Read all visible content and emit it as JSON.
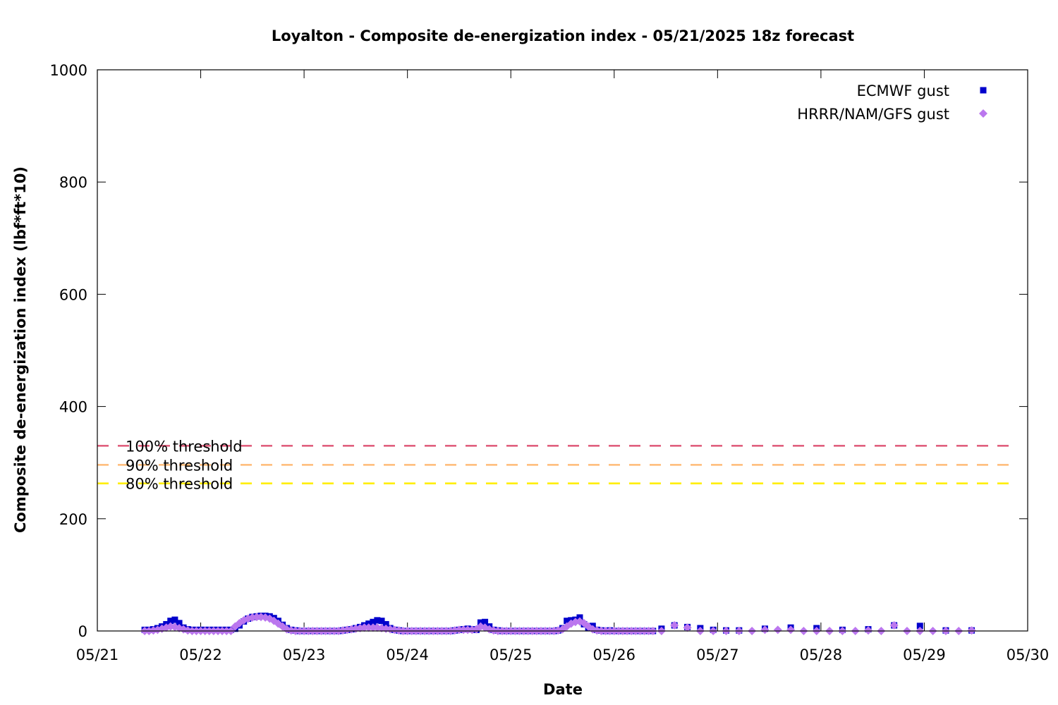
{
  "chart_data": {
    "type": "scatter",
    "title": "Loyalton - Composite de-energization index - 05/21/2025 18z forecast",
    "xlabel": "Date",
    "ylabel": "Composite de-energization index (lbf*ft*10)",
    "xlim": [
      0,
      9
    ],
    "ylim": [
      0,
      1000
    ],
    "x_unit": "days after 05/21 00z",
    "x_ticks": [
      {
        "value": 0,
        "label": "05/21"
      },
      {
        "value": 1,
        "label": "05/22"
      },
      {
        "value": 2,
        "label": "05/23"
      },
      {
        "value": 3,
        "label": "05/24"
      },
      {
        "value": 4,
        "label": "05/25"
      },
      {
        "value": 5,
        "label": "05/26"
      },
      {
        "value": 6,
        "label": "05/27"
      },
      {
        "value": 7,
        "label": "05/28"
      },
      {
        "value": 8,
        "label": "05/29"
      },
      {
        "value": 9,
        "label": "05/30"
      }
    ],
    "y_ticks": [
      0,
      200,
      400,
      600,
      800,
      1000
    ],
    "grid": false,
    "legend_position": "top-right",
    "thresholds": [
      {
        "label": "100% threshold",
        "value": 330,
        "color": "#e0607e"
      },
      {
        "label": "90% threshold",
        "value": 296,
        "color": "#ffbb77"
      },
      {
        "label": "80% threshold",
        "value": 263,
        "color": "#ffee00"
      }
    ],
    "series": [
      {
        "name": "ECMWF gust",
        "color": "#0000cc",
        "marker": "square",
        "points": [
          [
            0.458,
            2
          ],
          [
            0.5,
            2
          ],
          [
            0.542,
            3
          ],
          [
            0.583,
            5
          ],
          [
            0.625,
            8
          ],
          [
            0.667,
            12
          ],
          [
            0.708,
            18
          ],
          [
            0.75,
            20
          ],
          [
            0.792,
            14
          ],
          [
            0.833,
            6
          ],
          [
            0.875,
            3
          ],
          [
            0.917,
            2
          ],
          [
            0.958,
            2
          ],
          [
            1.0,
            2
          ],
          [
            1.042,
            2
          ],
          [
            1.083,
            2
          ],
          [
            1.125,
            2
          ],
          [
            1.167,
            2
          ],
          [
            1.208,
            2
          ],
          [
            1.25,
            2
          ],
          [
            1.292,
            2
          ],
          [
            1.333,
            4
          ],
          [
            1.375,
            10
          ],
          [
            1.417,
            17
          ],
          [
            1.458,
            22
          ],
          [
            1.5,
            25
          ],
          [
            1.542,
            26
          ],
          [
            1.583,
            27
          ],
          [
            1.625,
            27
          ],
          [
            1.667,
            26
          ],
          [
            1.708,
            23
          ],
          [
            1.75,
            18
          ],
          [
            1.792,
            11
          ],
          [
            1.833,
            5
          ],
          [
            1.875,
            2
          ],
          [
            1.917,
            1
          ],
          [
            1.958,
            0
          ],
          [
            2.0,
            0
          ],
          [
            2.042,
            0
          ],
          [
            2.083,
            0
          ],
          [
            2.125,
            0
          ],
          [
            2.167,
            0
          ],
          [
            2.208,
            0
          ],
          [
            2.25,
            0
          ],
          [
            2.292,
            0
          ],
          [
            2.333,
            0
          ],
          [
            2.375,
            1
          ],
          [
            2.417,
            2
          ],
          [
            2.458,
            3
          ],
          [
            2.5,
            5
          ],
          [
            2.542,
            7
          ],
          [
            2.583,
            10
          ],
          [
            2.625,
            13
          ],
          [
            2.667,
            16
          ],
          [
            2.708,
            19
          ],
          [
            2.75,
            18
          ],
          [
            2.792,
            12
          ],
          [
            2.833,
            5
          ],
          [
            2.875,
            2
          ],
          [
            2.917,
            1
          ],
          [
            2.958,
            0
          ],
          [
            3.0,
            0
          ],
          [
            3.042,
            0
          ],
          [
            3.083,
            0
          ],
          [
            3.125,
            0
          ],
          [
            3.167,
            0
          ],
          [
            3.208,
            0
          ],
          [
            3.25,
            0
          ],
          [
            3.292,
            0
          ],
          [
            3.333,
            0
          ],
          [
            3.375,
            0
          ],
          [
            3.417,
            0
          ],
          [
            3.458,
            1
          ],
          [
            3.5,
            2
          ],
          [
            3.542,
            3
          ],
          [
            3.583,
            4
          ],
          [
            3.625,
            3
          ],
          [
            3.667,
            2
          ],
          [
            3.708,
            15
          ],
          [
            3.75,
            16
          ],
          [
            3.792,
            8
          ],
          [
            3.833,
            2
          ],
          [
            3.875,
            1
          ],
          [
            3.917,
            0
          ],
          [
            3.958,
            0
          ],
          [
            4.0,
            0
          ],
          [
            4.042,
            0
          ],
          [
            4.083,
            0
          ],
          [
            4.125,
            0
          ],
          [
            4.167,
            0
          ],
          [
            4.208,
            0
          ],
          [
            4.25,
            0
          ],
          [
            4.292,
            0
          ],
          [
            4.333,
            0
          ],
          [
            4.375,
            0
          ],
          [
            4.417,
            0
          ],
          [
            4.458,
            1
          ],
          [
            4.5,
            5
          ],
          [
            4.542,
            18
          ],
          [
            4.583,
            19
          ],
          [
            4.625,
            20
          ],
          [
            4.667,
            24
          ],
          [
            4.708,
            12
          ],
          [
            4.75,
            5
          ],
          [
            4.792,
            9
          ],
          [
            4.833,
            2
          ],
          [
            4.875,
            1
          ],
          [
            4.917,
            0
          ],
          [
            4.958,
            1
          ],
          [
            5.0,
            0
          ],
          [
            5.042,
            0
          ],
          [
            5.083,
            0
          ],
          [
            5.125,
            0
          ],
          [
            5.167,
            0
          ],
          [
            5.208,
            0
          ],
          [
            5.25,
            0
          ],
          [
            5.292,
            0
          ],
          [
            5.333,
            0
          ],
          [
            5.375,
            0
          ],
          [
            5.458,
            4
          ],
          [
            5.583,
            10
          ],
          [
            5.708,
            7
          ],
          [
            5.833,
            5
          ],
          [
            5.958,
            2
          ],
          [
            6.083,
            1
          ],
          [
            6.208,
            1
          ],
          [
            6.458,
            4
          ],
          [
            6.708,
            6
          ],
          [
            6.958,
            5
          ],
          [
            7.208,
            2
          ],
          [
            7.458,
            3
          ],
          [
            7.708,
            10
          ],
          [
            7.958,
            9
          ],
          [
            8.208,
            1
          ],
          [
            8.458,
            1
          ]
        ]
      },
      {
        "name": "HRRR/NAM/GFS gust",
        "color": "#bb77ee",
        "marker": "diamond",
        "points": [
          [
            0.458,
            0
          ],
          [
            0.5,
            0
          ],
          [
            0.542,
            1
          ],
          [
            0.583,
            2
          ],
          [
            0.625,
            4
          ],
          [
            0.667,
            6
          ],
          [
            0.708,
            8
          ],
          [
            0.75,
            7
          ],
          [
            0.792,
            5
          ],
          [
            0.833,
            3
          ],
          [
            0.875,
            1
          ],
          [
            0.917,
            0
          ],
          [
            0.958,
            0
          ],
          [
            1.0,
            0
          ],
          [
            1.042,
            0
          ],
          [
            1.083,
            0
          ],
          [
            1.125,
            0
          ],
          [
            1.167,
            0
          ],
          [
            1.208,
            0
          ],
          [
            1.25,
            0
          ],
          [
            1.292,
            0
          ],
          [
            1.333,
            8
          ],
          [
            1.375,
            14
          ],
          [
            1.417,
            19
          ],
          [
            1.458,
            22
          ],
          [
            1.5,
            24
          ],
          [
            1.542,
            25
          ],
          [
            1.583,
            25
          ],
          [
            1.625,
            24
          ],
          [
            1.667,
            22
          ],
          [
            1.708,
            18
          ],
          [
            1.75,
            13
          ],
          [
            1.792,
            8
          ],
          [
            1.833,
            3
          ],
          [
            1.875,
            1
          ],
          [
            1.917,
            0
          ],
          [
            1.958,
            0
          ],
          [
            2.0,
            0
          ],
          [
            2.042,
            0
          ],
          [
            2.083,
            0
          ],
          [
            2.125,
            0
          ],
          [
            2.167,
            0
          ],
          [
            2.208,
            0
          ],
          [
            2.25,
            0
          ],
          [
            2.292,
            0
          ],
          [
            2.333,
            0
          ],
          [
            2.375,
            1
          ],
          [
            2.417,
            2
          ],
          [
            2.458,
            3
          ],
          [
            2.5,
            4
          ],
          [
            2.542,
            5
          ],
          [
            2.583,
            6
          ],
          [
            2.625,
            6
          ],
          [
            2.667,
            6
          ],
          [
            2.708,
            6
          ],
          [
            2.75,
            5
          ],
          [
            2.792,
            4
          ],
          [
            2.833,
            3
          ],
          [
            2.875,
            2
          ],
          [
            2.917,
            1
          ],
          [
            2.958,
            0
          ],
          [
            3.0,
            0
          ],
          [
            3.042,
            0
          ],
          [
            3.083,
            0
          ],
          [
            3.125,
            0
          ],
          [
            3.167,
            0
          ],
          [
            3.208,
            0
          ],
          [
            3.25,
            0
          ],
          [
            3.292,
            0
          ],
          [
            3.333,
            0
          ],
          [
            3.375,
            0
          ],
          [
            3.417,
            0
          ],
          [
            3.458,
            1
          ],
          [
            3.5,
            2
          ],
          [
            3.542,
            2
          ],
          [
            3.583,
            2
          ],
          [
            3.625,
            2
          ],
          [
            3.667,
            3
          ],
          [
            3.708,
            8
          ],
          [
            3.75,
            6
          ],
          [
            3.792,
            3
          ],
          [
            3.833,
            1
          ],
          [
            3.875,
            0
          ],
          [
            3.917,
            0
          ],
          [
            3.958,
            0
          ],
          [
            4.0,
            0
          ],
          [
            4.042,
            0
          ],
          [
            4.083,
            0
          ],
          [
            4.125,
            0
          ],
          [
            4.167,
            0
          ],
          [
            4.208,
            0
          ],
          [
            4.25,
            0
          ],
          [
            4.292,
            0
          ],
          [
            4.333,
            0
          ],
          [
            4.375,
            0
          ],
          [
            4.417,
            0
          ],
          [
            4.458,
            1
          ],
          [
            4.5,
            3
          ],
          [
            4.542,
            8
          ],
          [
            4.583,
            13
          ],
          [
            4.625,
            16
          ],
          [
            4.667,
            17
          ],
          [
            4.708,
            14
          ],
          [
            4.75,
            8
          ],
          [
            4.792,
            3
          ],
          [
            4.833,
            1
          ],
          [
            4.875,
            0
          ],
          [
            4.917,
            0
          ],
          [
            4.958,
            0
          ],
          [
            5.0,
            0
          ],
          [
            5.042,
            0
          ],
          [
            5.083,
            0
          ],
          [
            5.125,
            0
          ],
          [
            5.167,
            0
          ],
          [
            5.208,
            0
          ],
          [
            5.25,
            0
          ],
          [
            5.292,
            0
          ],
          [
            5.333,
            0
          ],
          [
            5.375,
            0
          ],
          [
            5.458,
            0
          ],
          [
            5.583,
            10
          ],
          [
            5.708,
            6
          ],
          [
            5.833,
            0
          ],
          [
            5.958,
            0
          ],
          [
            6.083,
            0
          ],
          [
            6.208,
            0
          ],
          [
            6.333,
            0
          ],
          [
            6.458,
            2
          ],
          [
            6.583,
            2
          ],
          [
            6.708,
            2
          ],
          [
            6.833,
            0
          ],
          [
            6.958,
            0
          ],
          [
            7.083,
            0
          ],
          [
            7.208,
            0
          ],
          [
            7.333,
            0
          ],
          [
            7.458,
            1
          ],
          [
            7.583,
            0
          ],
          [
            7.708,
            10
          ],
          [
            7.833,
            0
          ],
          [
            7.958,
            0
          ],
          [
            8.083,
            0
          ],
          [
            8.208,
            0
          ],
          [
            8.333,
            0
          ],
          [
            8.458,
            1
          ]
        ]
      }
    ]
  }
}
